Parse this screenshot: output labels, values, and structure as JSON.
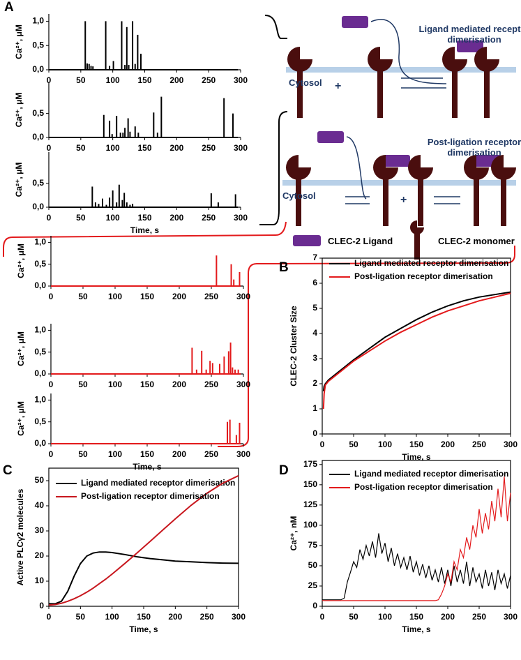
{
  "panels": {
    "a": "A",
    "b": "B",
    "c": "C",
    "d": "D"
  },
  "diagram": {
    "ligand_title": "Ligand mediated receptor dimerisation",
    "cytosol_1": "Cytosol",
    "plus_1": "+",
    "post_title": "Post-ligation receptor dimerisation",
    "cytosol_2": "Cytosol",
    "plus_2": "+",
    "ligand_legend": "CLEC-2 Ligand",
    "monomer_legend": "CLEC-2 monomer"
  },
  "chart_data": [
    {
      "type": "spike",
      "color": "#000000",
      "ylabel": "Ca²⁺, μM",
      "xlim": [
        0,
        300
      ],
      "ylim": [
        0,
        1.15
      ],
      "xticks": [
        0,
        50,
        100,
        150,
        200,
        250,
        300
      ],
      "yticks": [
        {
          "value": 0,
          "label": "0,0"
        },
        {
          "value": 0.5,
          "label": "0,5"
        },
        {
          "value": 1,
          "label": "1,0"
        }
      ],
      "x": [
        57,
        60,
        63,
        66,
        69,
        89,
        95,
        101,
        114,
        119,
        122,
        125,
        131,
        135,
        139,
        144
      ],
      "values": [
        1.0,
        0.13,
        0.12,
        0.08,
        0.07,
        1.0,
        0.08,
        0.18,
        1.0,
        0.1,
        0.88,
        0.1,
        1.0,
        0.12,
        0.72,
        0.33
      ]
    },
    {
      "type": "spike",
      "color": "#000000",
      "ylabel": "Ca²⁺, μM",
      "xlim": [
        0,
        300
      ],
      "ylim": [
        0,
        1.15
      ],
      "xticks": [
        0,
        50,
        100,
        150,
        200,
        250,
        300
      ],
      "yticks": [
        {
          "value": 0,
          "label": "0,0"
        },
        {
          "value": 0.5,
          "label": "0,5"
        }
      ],
      "x": [
        86,
        95,
        99,
        106,
        112,
        116,
        119,
        124,
        127,
        135,
        140,
        164,
        170,
        176,
        274,
        288
      ],
      "values": [
        0.47,
        0.35,
        0.07,
        0.45,
        0.1,
        0.1,
        0.2,
        0.4,
        0.12,
        0.23,
        0.1,
        0.52,
        0.1,
        0.85,
        0.82,
        0.5
      ]
    },
    {
      "type": "spike",
      "color": "#000000",
      "ylabel": "Ca²⁺, μM",
      "xlabel": "Time, s",
      "xlim": [
        0,
        300
      ],
      "ylim": [
        0,
        1.15
      ],
      "xticks": [
        0,
        50,
        100,
        150,
        200,
        250,
        300
      ],
      "yticks": [
        {
          "value": 0,
          "label": "0,0"
        },
        {
          "value": 0.5,
          "label": "0,5"
        }
      ],
      "x": [
        68,
        73,
        78,
        84,
        90,
        95,
        100,
        106,
        110,
        115,
        118,
        122,
        127,
        131,
        254,
        265,
        292
      ],
      "values": [
        0.43,
        0.1,
        0.07,
        0.18,
        0.05,
        0.2,
        0.35,
        0.1,
        0.47,
        0.15,
        0.3,
        0.1,
        0.05,
        0.07,
        0.29,
        0.1,
        0.27
      ]
    },
    {
      "type": "spike",
      "color": "#e31a1c",
      "ylabel": "Ca²⁺, μM",
      "xlim": [
        0,
        300
      ],
      "ylim": [
        0,
        1.15
      ],
      "xticks": [
        0,
        50,
        100,
        150,
        200,
        250,
        300
      ],
      "yticks": [
        {
          "value": 0,
          "label": "0,0"
        },
        {
          "value": 0.5,
          "label": "0,5"
        },
        {
          "value": 1,
          "label": "1,0"
        }
      ],
      "x": [
        258,
        281,
        285,
        294
      ],
      "values": [
        0.7,
        0.5,
        0.15,
        0.32
      ]
    },
    {
      "type": "spike",
      "color": "#e31a1c",
      "ylabel": "Ca²⁺, μM",
      "xlim": [
        0,
        300
      ],
      "ylim": [
        0,
        1.15
      ],
      "xticks": [
        0,
        50,
        100,
        150,
        200,
        250,
        300
      ],
      "yticks": [
        {
          "value": 0,
          "label": "0,0"
        },
        {
          "value": 0.5,
          "label": "0,5"
        },
        {
          "value": 1,
          "label": "1,0"
        }
      ],
      "x": [
        220,
        227,
        235,
        242,
        248,
        252,
        263,
        270,
        277,
        280,
        283,
        287,
        292
      ],
      "values": [
        0.6,
        0.1,
        0.53,
        0.1,
        0.3,
        0.25,
        0.23,
        0.4,
        0.52,
        0.72,
        0.15,
        0.1,
        0.1
      ]
    },
    {
      "type": "spike",
      "color": "#e31a1c",
      "ylabel": "Ca²⁺, μM",
      "xlabel": "Time, s",
      "xlim": [
        0,
        300
      ],
      "ylim": [
        0,
        1.15
      ],
      "xticks": [
        0,
        50,
        100,
        150,
        200,
        250,
        300
      ],
      "yticks": [
        {
          "value": 0,
          "label": "0,0"
        },
        {
          "value": 0.5,
          "label": "0,5"
        },
        {
          "value": 1,
          "label": "1,0"
        }
      ],
      "x": [
        275,
        279,
        289,
        294
      ],
      "values": [
        0.5,
        0.55,
        0.2,
        0.48
      ]
    },
    {
      "type": "line",
      "ylabel": "CLEC-2 Cluster Size",
      "xlabel": "Time, s",
      "legend_position": "upper left",
      "xlim": [
        0,
        300
      ],
      "ylim": [
        0,
        7
      ],
      "xticks": [
        0,
        50,
        100,
        150,
        200,
        250,
        300
      ],
      "yticks": [
        0,
        1,
        2,
        3,
        4,
        5,
        6,
        7
      ],
      "x": [
        2,
        3,
        5,
        10,
        25,
        50,
        75,
        100,
        125,
        150,
        175,
        200,
        225,
        250,
        275,
        300
      ],
      "series": [
        {
          "name": "Ligand mediated receptor dimerisation",
          "color": "#000000",
          "values": [
            1.7,
            1.9,
            2.0,
            2.15,
            2.45,
            2.95,
            3.4,
            3.85,
            4.2,
            4.55,
            4.85,
            5.1,
            5.3,
            5.45,
            5.55,
            5.65
          ]
        },
        {
          "name": "Post-ligation receptor dimerisation",
          "color": "#e31a1c",
          "values": [
            1.0,
            1.6,
            1.95,
            2.1,
            2.4,
            2.9,
            3.3,
            3.7,
            4.05,
            4.35,
            4.65,
            4.9,
            5.1,
            5.3,
            5.45,
            5.6
          ]
        }
      ]
    },
    {
      "type": "line",
      "ylabel": "Active PLCγ2 molecules",
      "xlabel": "Time, s",
      "legend_position": "upper left",
      "xlim": [
        0,
        300
      ],
      "ylim": [
        0,
        55
      ],
      "xticks": [
        0,
        50,
        100,
        150,
        200,
        250,
        300
      ],
      "yticks": [
        0,
        10,
        20,
        30,
        40,
        50
      ],
      "x": [
        0,
        10,
        20,
        30,
        40,
        50,
        60,
        70,
        80,
        90,
        100,
        120,
        140,
        160,
        180,
        200,
        225,
        250,
        275,
        300
      ],
      "series": [
        {
          "name": "Ligand mediated receptor dimerisation",
          "color": "#000000",
          "values": [
            1,
            1,
            2,
            6,
            12,
            17,
            20,
            21.2,
            21.6,
            21.6,
            21.4,
            20.6,
            19.7,
            19,
            18.5,
            18,
            17.7,
            17.4,
            17.2,
            17.1
          ]
        },
        {
          "name": "Post-ligation receptor dimerisation",
          "color": "#c8171e",
          "values": [
            0.5,
            0.7,
            1.2,
            2,
            3,
            4.2,
            5.6,
            7.2,
            9,
            10.8,
            12.8,
            17,
            21.3,
            25.8,
            30.3,
            34.8,
            40.2,
            45,
            49,
            52
          ]
        }
      ]
    },
    {
      "type": "line",
      "ylabel": "Ca²⁺, nM",
      "xlabel": "Time, s",
      "legend_position": "upper left",
      "xlim": [
        0,
        300
      ],
      "ylim": [
        0,
        180
      ],
      "xticks": [
        0,
        50,
        100,
        150,
        200,
        250,
        300
      ],
      "yticks": [
        0,
        25,
        50,
        75,
        100,
        125,
        150,
        175
      ],
      "x": [
        0,
        5,
        10,
        15,
        20,
        25,
        30,
        35,
        40,
        45,
        50,
        55,
        60,
        65,
        70,
        75,
        80,
        85,
        90,
        95,
        100,
        105,
        110,
        115,
        120,
        125,
        130,
        135,
        140,
        145,
        150,
        155,
        160,
        165,
        170,
        175,
        180,
        185,
        190,
        195,
        200,
        205,
        210,
        215,
        220,
        225,
        230,
        235,
        240,
        245,
        250,
        255,
        260,
        265,
        270,
        275,
        280,
        285,
        290,
        295,
        300
      ],
      "series": [
        {
          "name": "Ligand mediated receptor dimerisation",
          "color": "#000000",
          "values": [
            8,
            8,
            8,
            8,
            8,
            8,
            8,
            10,
            30,
            42,
            55,
            48,
            70,
            58,
            75,
            62,
            80,
            60,
            90,
            65,
            78,
            55,
            72,
            50,
            65,
            48,
            60,
            45,
            62,
            42,
            55,
            38,
            52,
            35,
            50,
            32,
            45,
            30,
            48,
            28,
            45,
            25,
            50,
            30,
            45,
            28,
            55,
            25,
            48,
            30,
            40,
            22,
            45,
            25,
            42,
            20,
            45,
            28,
            40,
            22,
            38
          ]
        },
        {
          "name": "Post-ligation receptor dimerisation",
          "color": "#e31a1c",
          "values": [
            7,
            7,
            7,
            7,
            7,
            7,
            7,
            7,
            7,
            7,
            7,
            7,
            7,
            7,
            7,
            7,
            7,
            7,
            7,
            7,
            7,
            7,
            7,
            7,
            7,
            7,
            7,
            7,
            7,
            7,
            7,
            7,
            7,
            7,
            7,
            7,
            7,
            8,
            15,
            25,
            40,
            30,
            55,
            45,
            70,
            60,
            85,
            70,
            100,
            85,
            120,
            90,
            115,
            95,
            130,
            105,
            145,
            110,
            160,
            105,
            140
          ]
        }
      ]
    }
  ]
}
